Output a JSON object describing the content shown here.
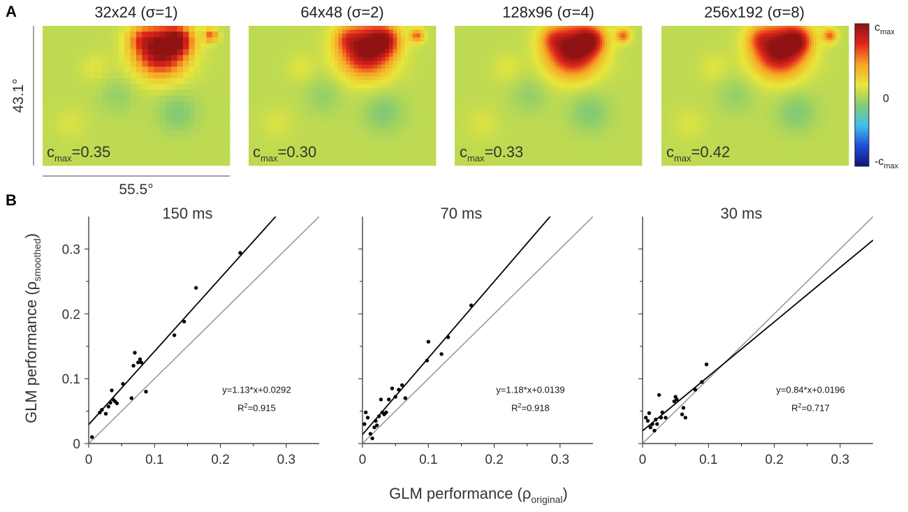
{
  "panel_a": {
    "letter": "A",
    "dim_vertical": "43.1°",
    "dim_horizontal": "55.5°",
    "colorbar": {
      "top_prefix": "c",
      "top_sub": "max",
      "mid_label": "0",
      "bottom_prefix": "-c",
      "bottom_sub": "max",
      "colors": [
        "#11127a",
        "#1f4fd6",
        "#3fc0ee",
        "#86cb70",
        "#e9e63b",
        "#f6a524",
        "#e2261c",
        "#8f1313"
      ]
    },
    "maps": [
      {
        "title": "32x24 (σ=1)",
        "cmax_prefix": "c",
        "cmax_sub": "max",
        "cmax_value": "=0.35",
        "pixelated": true
      },
      {
        "title": "64x48 (σ=2)",
        "cmax_prefix": "c",
        "cmax_sub": "max",
        "cmax_value": "=0.30",
        "pixelated": true
      },
      {
        "title": "128x96 (σ=4)",
        "cmax_prefix": "c",
        "cmax_sub": "max",
        "cmax_value": "=0.33",
        "pixelated": false
      },
      {
        "title": "256x192 (σ=8)",
        "cmax_prefix": "c",
        "cmax_sub": "max",
        "cmax_value": "=0.42",
        "pixelated": false
      }
    ]
  },
  "panel_b": {
    "letter": "B",
    "ylabel_main": "GLM performance (ρ",
    "ylabel_sub": "smoothed",
    "ylabel_close": ")",
    "xlabel_main": "GLM performance (ρ",
    "xlabel_sub": "original",
    "xlabel_close": ")"
  },
  "chart_data": [
    {
      "type": "scatter",
      "title": "150 ms",
      "xlim": [
        0,
        0.35
      ],
      "ylim": [
        0,
        0.35
      ],
      "xticks": [
        "0",
        "0.1",
        "0.2",
        "0.3"
      ],
      "yticks": [
        "0",
        "0.1",
        "0.2",
        "0.3"
      ],
      "fit": {
        "slope": 1.13,
        "intercept": 0.0292,
        "color": "#000000"
      },
      "identity_color": "#9a9a9a",
      "equation": "y=1.13*x+0.0292",
      "r2_prefix": "R",
      "r2_sup": "2",
      "r2_value": "=0.915",
      "x": [
        0.005,
        0.017,
        0.02,
        0.026,
        0.03,
        0.033,
        0.035,
        0.037,
        0.04,
        0.043,
        0.052,
        0.065,
        0.068,
        0.07,
        0.075,
        0.078,
        0.08,
        0.087,
        0.13,
        0.145,
        0.163,
        0.23
      ],
      "y": [
        0.01,
        0.048,
        0.052,
        0.046,
        0.057,
        0.063,
        0.082,
        0.068,
        0.065,
        0.062,
        0.092,
        0.07,
        0.12,
        0.14,
        0.125,
        0.13,
        0.125,
        0.08,
        0.167,
        0.188,
        0.24,
        0.294
      ]
    },
    {
      "type": "scatter",
      "title": "70 ms",
      "xlim": [
        0,
        0.35
      ],
      "ylim": [
        0,
        0.35
      ],
      "xticks": [
        "0",
        "0.1",
        "0.2",
        "0.3"
      ],
      "yticks": [
        "0",
        "0.1",
        "0.2",
        "0.3"
      ],
      "fit": {
        "slope": 1.18,
        "intercept": 0.0139,
        "color": "#000000"
      },
      "identity_color": "#9a9a9a",
      "equation": "y=1.18*x+0.0139",
      "r2_prefix": "R",
      "r2_sup": "2",
      "r2_value": "=0.918",
      "x": [
        0.003,
        0.005,
        0.008,
        0.012,
        0.015,
        0.018,
        0.02,
        0.022,
        0.025,
        0.028,
        0.03,
        0.033,
        0.036,
        0.04,
        0.045,
        0.05,
        0.055,
        0.06,
        0.065,
        0.098,
        0.1,
        0.12,
        0.13,
        0.165
      ],
      "y": [
        0.03,
        0.048,
        0.04,
        0.015,
        0.008,
        0.025,
        0.035,
        0.028,
        0.042,
        0.068,
        0.048,
        0.045,
        0.048,
        0.068,
        0.085,
        0.072,
        0.083,
        0.09,
        0.07,
        0.128,
        0.157,
        0.138,
        0.164,
        0.213
      ]
    },
    {
      "type": "scatter",
      "title": "30 ms",
      "xlim": [
        0,
        0.35
      ],
      "ylim": [
        0,
        0.35
      ],
      "xticks": [
        "0",
        "0.1",
        "0.2",
        "0.3"
      ],
      "yticks": [
        "0",
        "0.1",
        "0.2",
        "0.3"
      ],
      "fit": {
        "slope": 0.84,
        "intercept": 0.0196,
        "color": "#000000"
      },
      "identity_color": "#9a9a9a",
      "equation": "y=0.84*x+0.0196",
      "r2_prefix": "R",
      "r2_sup": "2",
      "r2_value": "=0.717",
      "x": [
        0.005,
        0.008,
        0.01,
        0.012,
        0.015,
        0.018,
        0.02,
        0.022,
        0.025,
        0.028,
        0.03,
        0.035,
        0.048,
        0.05,
        0.052,
        0.06,
        0.062,
        0.065,
        0.08,
        0.09,
        0.097
      ],
      "y": [
        0.04,
        0.035,
        0.047,
        0.025,
        0.03,
        0.02,
        0.037,
        0.03,
        0.075,
        0.04,
        0.048,
        0.04,
        0.065,
        0.072,
        0.068,
        0.045,
        0.055,
        0.04,
        0.083,
        0.095,
        0.122
      ]
    }
  ]
}
